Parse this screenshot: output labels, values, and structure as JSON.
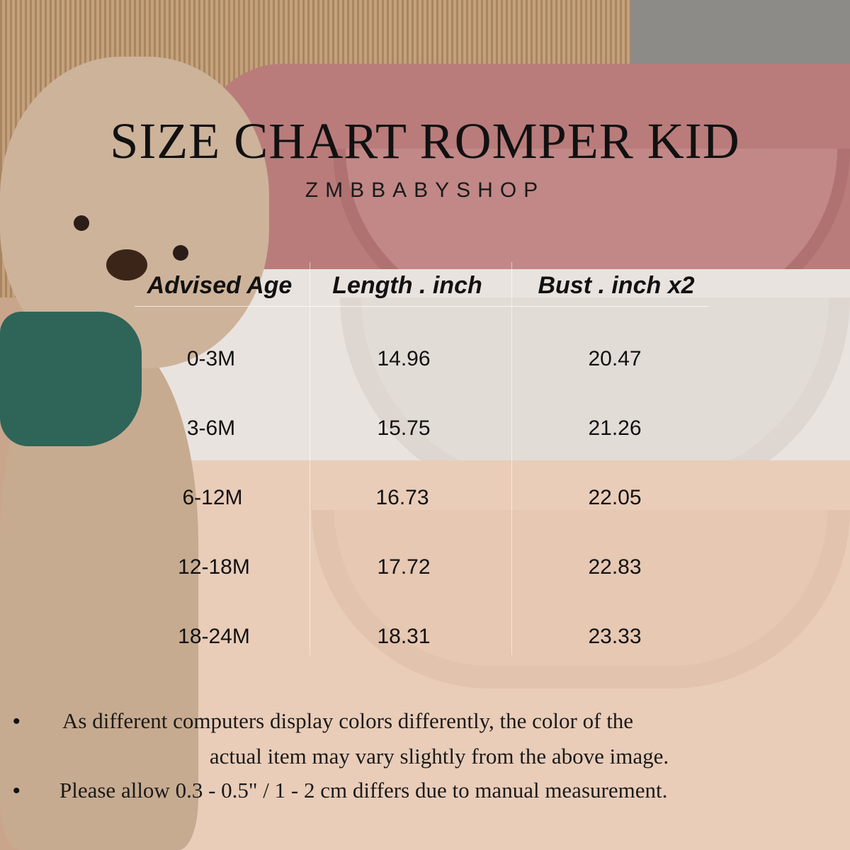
{
  "title": "SIZE CHART ROMPER KID",
  "subtitle": "ZMBBABYSHOP",
  "table": {
    "headers": [
      "Advised Age",
      "Length . inch",
      "Bust . inch x2"
    ],
    "rows": [
      [
        "0-3M",
        "14.96",
        "20.47"
      ],
      [
        "3-6M",
        "15.75",
        "21.26"
      ],
      [
        "6-12M",
        "16.73",
        "22.05"
      ],
      [
        "12-18M",
        "17.72",
        "22.83"
      ],
      [
        "18-24M",
        "18.31",
        "23.33"
      ]
    ]
  },
  "notes": [
    {
      "bullet": "•",
      "line1": "As different computers display colors differently, the color of the",
      "line2": "actual item may vary slightly from the above image."
    },
    {
      "bullet": "•",
      "line1": "Please allow 0.3 - 0.5\" / 1 - 2 cm differs due to manual measurement."
    }
  ]
}
